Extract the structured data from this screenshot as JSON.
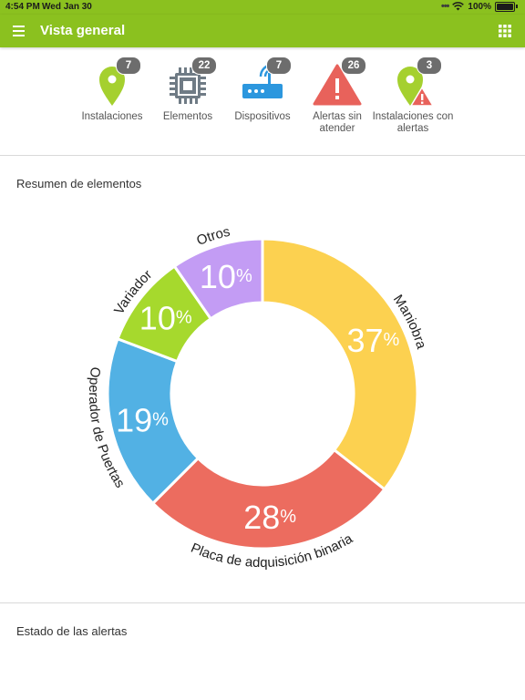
{
  "status_bar": {
    "time": "4:54 PM",
    "date": "Wed Jan 30",
    "battery": "100%"
  },
  "app_bar": {
    "title": "Vista general"
  },
  "summary": [
    {
      "label": "Instalaciones",
      "count": "7",
      "icon": "map-pin-icon"
    },
    {
      "label": "Elementos",
      "count": "22",
      "icon": "chip-icon"
    },
    {
      "label": "Dispositivos",
      "count": "7",
      "icon": "router-icon"
    },
    {
      "label": "Alertas sin atender",
      "count": "26",
      "icon": "warning-triangle-icon"
    },
    {
      "label": "Instalaciones con alertas",
      "count": "3",
      "icon": "pin-alert-icon"
    }
  ],
  "sections": {
    "elements_title": "Resumen de elementos",
    "alerts_title": "Estado de las alertas"
  },
  "chart_data": {
    "type": "pie",
    "title": "Resumen de elementos",
    "slices": [
      {
        "label": "Maniobra",
        "value": 37,
        "display": "37%",
        "color": "#fcd150"
      },
      {
        "label": "Placa de adquisición binaria",
        "value": 28,
        "display": "28%",
        "color": "#ec6c5f"
      },
      {
        "label": "Operador de Puertas",
        "value": 19,
        "display": "19%",
        "color": "#52b1e4"
      },
      {
        "label": "Variador",
        "value": 10,
        "display": "10%",
        "color": "#a6d92d"
      },
      {
        "label": "Otros",
        "value": 10,
        "display": "10%",
        "color": "#c39cf4"
      }
    ]
  },
  "colors": {
    "accent": "#8bc11f",
    "badge": "#6d6d6d",
    "icon_green": "#a5d02f",
    "icon_blue": "#2c97de",
    "icon_red": "#e8625b",
    "icon_gray": "#6f7b85"
  }
}
